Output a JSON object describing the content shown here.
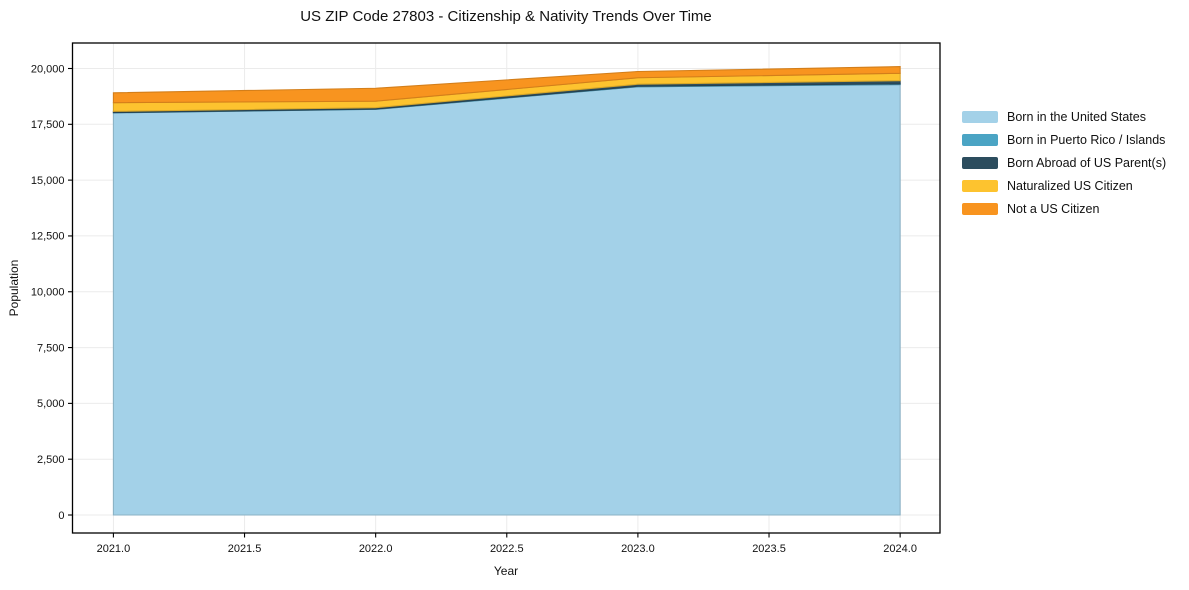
{
  "chart_data": {
    "type": "area",
    "stacked": true,
    "title": "US ZIP Code 27803 - Citizenship & Nativity Trends Over Time",
    "xlabel": "Year",
    "ylabel": "Population",
    "x": [
      2021,
      2022,
      2023,
      2024
    ],
    "series": [
      {
        "name": "Born in the United States",
        "color": "#A3D1E8",
        "values": [
          18010,
          18170,
          19180,
          19280
        ]
      },
      {
        "name": "Born in Puerto Rico / Islands",
        "color": "#4BA4C4",
        "values": [
          15,
          15,
          25,
          35
        ]
      },
      {
        "name": "Born Abroad of US Parent(s)",
        "color": "#2C4D5E",
        "values": [
          55,
          60,
          90,
          140
        ]
      },
      {
        "name": "Naturalized US Citizen",
        "color": "#FDC32F",
        "values": [
          390,
          290,
          290,
          330
        ]
      },
      {
        "name": "Not a US Citizen",
        "color": "#F8941F",
        "values": [
          440,
          580,
          280,
          300
        ]
      }
    ],
    "xlim": [
      2020.844,
      2024.152
    ],
    "ylim": [
      -806,
      21142
    ],
    "xticks": [
      2021.0,
      2021.5,
      2022.0,
      2022.5,
      2023.0,
      2023.5,
      2024.0
    ],
    "xtick_labels": [
      "2021.0",
      "2021.5",
      "2022.0",
      "2022.5",
      "2023.0",
      "2023.5",
      "2024.0"
    ],
    "yticks": [
      0,
      2500,
      5000,
      7500,
      10000,
      12500,
      15000,
      17500,
      20000
    ],
    "ytick_labels": [
      "0",
      "2,500",
      "5,000",
      "7,500",
      "10,000",
      "12,500",
      "15,000",
      "17,500",
      "20,000"
    ],
    "grid": true,
    "legend_position": "right",
    "colors": {
      "grid": "#ebebeb",
      "spine": "#000000",
      "tick_text": "#111111",
      "background": "#ffffff"
    }
  }
}
